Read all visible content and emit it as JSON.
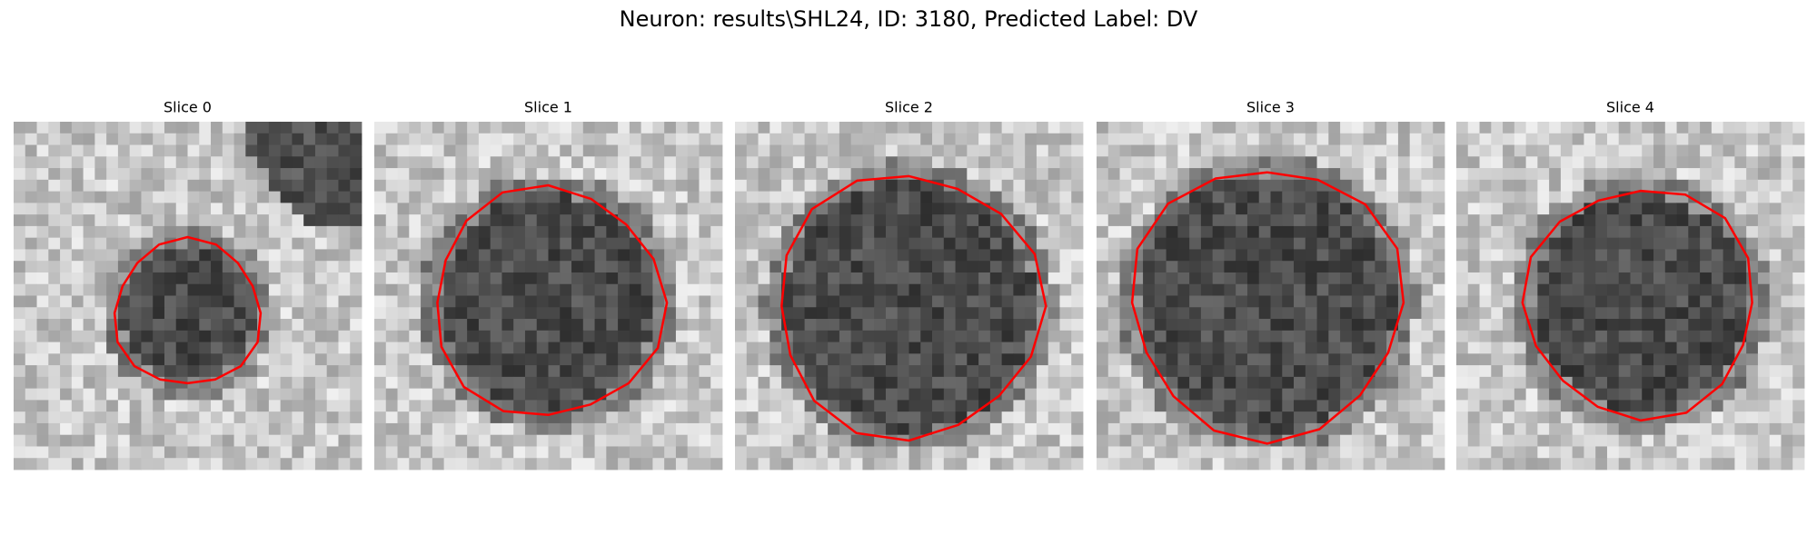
{
  "title": "Neuron: results\\SHL24, ID: 3180, Predicted Label: DV",
  "panels": [
    {
      "title": "Slice 0"
    },
    {
      "title": "Slice 1"
    },
    {
      "title": "Slice 2"
    },
    {
      "title": "Slice 3"
    },
    {
      "title": "Slice 4"
    }
  ]
}
